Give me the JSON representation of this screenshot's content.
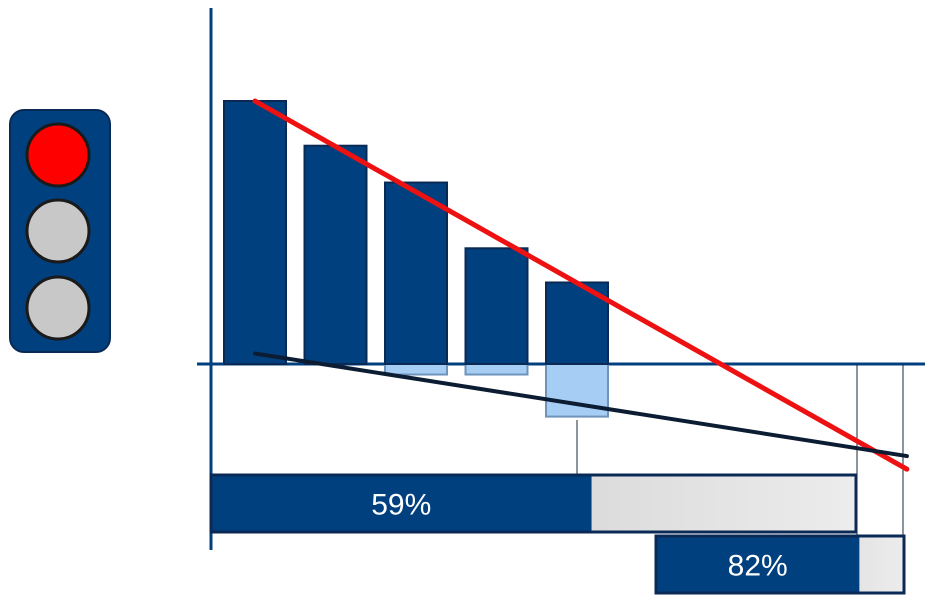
{
  "chart_data": {
    "type": "bar",
    "series": [
      {
        "values": [
          100,
          83,
          69,
          44,
          31
        ]
      },
      {
        "values": [
          0,
          0,
          -4,
          -4,
          -20
        ]
      }
    ],
    "trend_lines": [
      {
        "color": "#ee1111",
        "from": [
          0,
          100
        ],
        "to": [
          8.2,
          -40
        ]
      },
      {
        "color": "#0b1c33",
        "from": [
          0,
          4
        ],
        "to": [
          8.2,
          -35
        ]
      }
    ],
    "progress_bars": [
      {
        "label": "59%",
        "value": 0.59
      },
      {
        "label": "82%",
        "value": 0.82
      }
    ],
    "grid": false,
    "legend": "none"
  },
  "traffic_light": {
    "active": "red",
    "lamps": [
      "red",
      "off",
      "off"
    ]
  },
  "colors": {
    "bar": "#00407f",
    "bar_negative": "#a6cef5",
    "bar_negative_border": "#6f93bb",
    "axis": "#00407f",
    "trend_red": "#ee1111",
    "trend_dark": "#0b1c33",
    "lamp_red": "#ff0000",
    "lamp_off": "#c8c8c8",
    "gray_fill": "#d4d4d4"
  }
}
